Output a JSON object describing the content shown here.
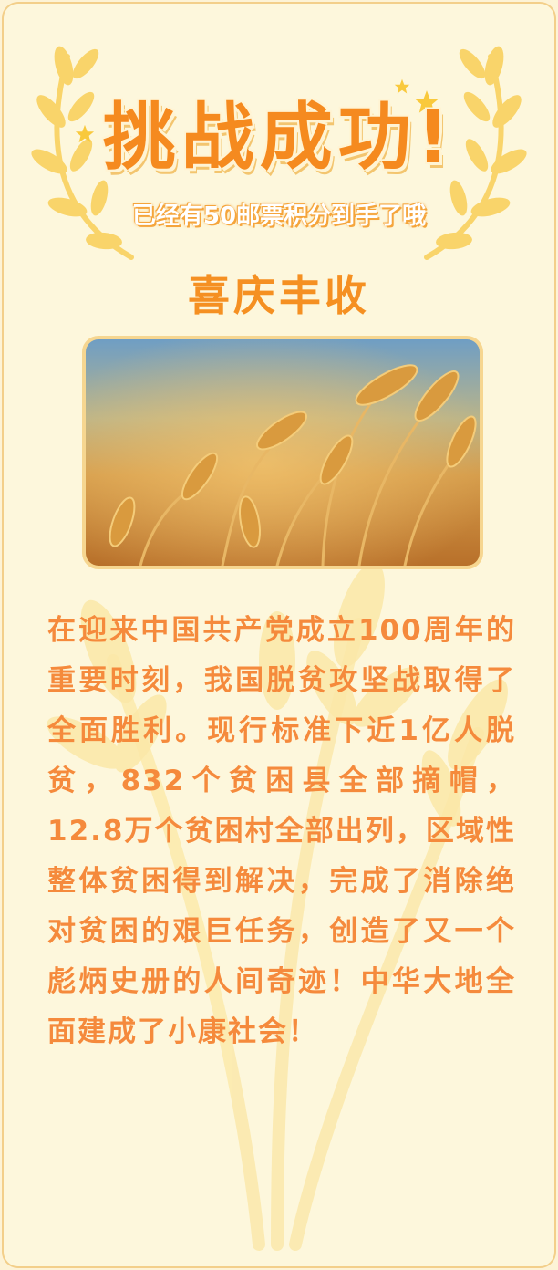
{
  "header": {
    "title": "挑战成功!",
    "subtitle": "已经有50邮票积分到手了哦"
  },
  "section": {
    "title": "喜庆丰收"
  },
  "image": {
    "subject": "wheat-field-photo"
  },
  "body": {
    "text": "在迎来中国共产党成立100周年的重要时刻，我国脱贫攻坚战取得了全面胜利。现行标准下近1亿人脱贫，832个贫困县全部摘帽，12.8万个贫困村全部出列，区域性整体贫困得到解决，完成了消除绝对贫困的艰巨任务，创造了又一个彪炳史册的人间奇迹！中华大地全面建成了小康社会！"
  },
  "colors": {
    "background": "#fdf7dc",
    "border": "#f3cf8a",
    "accent": "#f58a1f",
    "text": "#f58a3c",
    "laurel": "#f9d46a"
  }
}
